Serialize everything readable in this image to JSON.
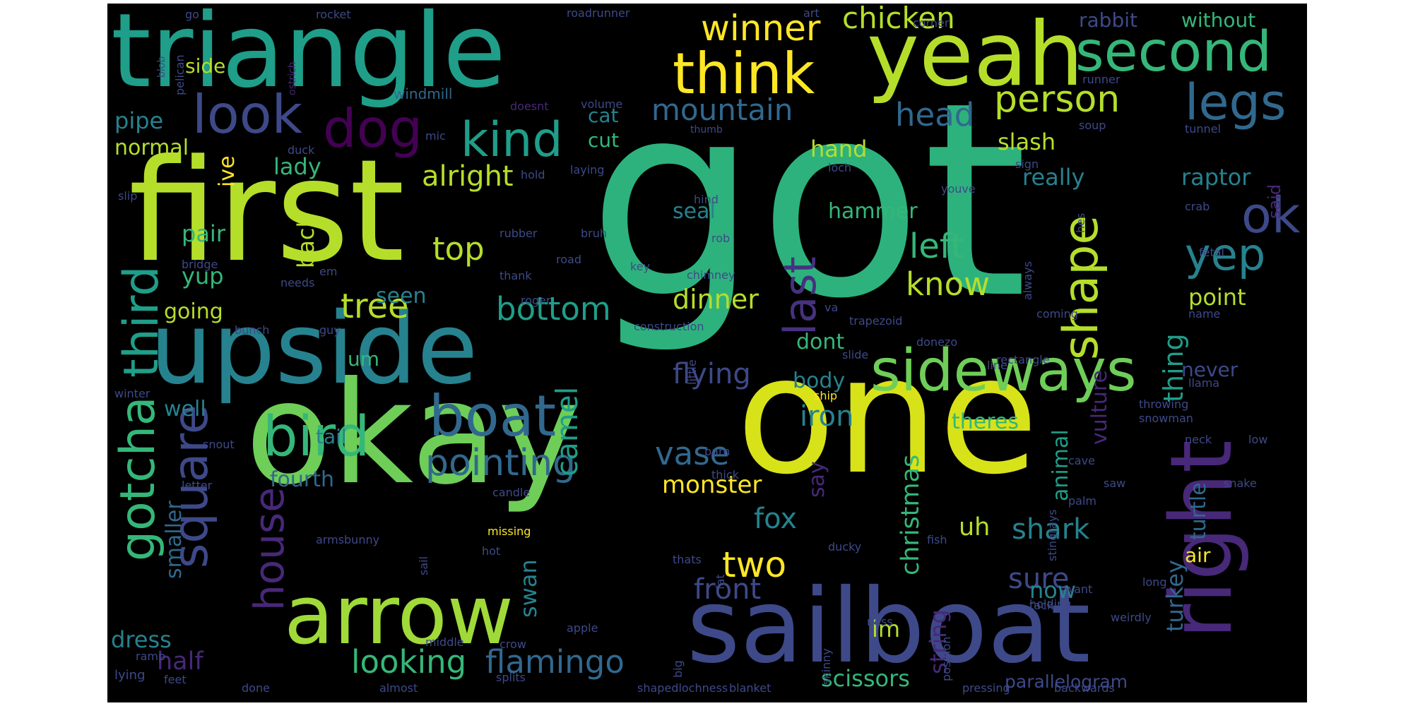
{
  "colors": {
    "background": "#000000",
    "palette": [
      "#fde725",
      "#b5de2b",
      "#6ece58",
      "#35b779",
      "#1f9e89",
      "#26828e",
      "#31688e",
      "#3e4989",
      "#482878",
      "#440154"
    ]
  },
  "words": [
    {
      "text": "got",
      "color": "#2db27d"
    },
    {
      "text": "one",
      "color": "#d8e219"
    },
    {
      "text": "first",
      "color": "#b5de2b"
    },
    {
      "text": "okay",
      "color": "#6ece58"
    },
    {
      "text": "triangle",
      "color": "#1f9e89"
    },
    {
      "text": "upside",
      "color": "#26828e"
    },
    {
      "text": "yeah",
      "color": "#b5de2b"
    },
    {
      "text": "sailboat",
      "color": "#3e4989"
    },
    {
      "text": "arrow",
      "color": "#a0da39"
    },
    {
      "text": "right",
      "color": "#482878"
    },
    {
      "text": "sideways",
      "color": "#6ece58"
    },
    {
      "text": "second",
      "color": "#35b779"
    },
    {
      "text": "think",
      "color": "#fde725"
    },
    {
      "text": "look",
      "color": "#3e4989"
    },
    {
      "text": "dog",
      "color": "#440154"
    },
    {
      "text": "boat",
      "color": "#31688e"
    },
    {
      "text": "bird",
      "color": "#35b779"
    },
    {
      "text": "kind",
      "color": "#1f9e89"
    },
    {
      "text": "shape",
      "color": "#b5de2b"
    },
    {
      "text": "third",
      "color": "#1f9e89"
    },
    {
      "text": "gotcha",
      "color": "#35b779"
    },
    {
      "text": "square",
      "color": "#3e4989"
    },
    {
      "text": "legs",
      "color": "#31688e"
    },
    {
      "text": "ok",
      "color": "#3e4989"
    },
    {
      "text": "last",
      "color": "#46327e"
    },
    {
      "text": "yep",
      "color": "#26828e"
    },
    {
      "text": "pointing",
      "color": "#31688e"
    },
    {
      "text": "house",
      "color": "#482878"
    },
    {
      "text": "person",
      "color": "#b5de2b"
    },
    {
      "text": "winner",
      "color": "#fde725"
    },
    {
      "text": "chicken",
      "color": "#b5de2b"
    },
    {
      "text": "mountain",
      "color": "#31688e"
    },
    {
      "text": "head",
      "color": "#31688e"
    },
    {
      "text": "left",
      "color": "#35b779"
    },
    {
      "text": "know",
      "color": "#b5de2b"
    },
    {
      "text": "bottom",
      "color": "#1f9e89"
    },
    {
      "text": "tree",
      "color": "#b5de2b"
    },
    {
      "text": "top",
      "color": "#b5de2b"
    },
    {
      "text": "flamingo",
      "color": "#31688e"
    },
    {
      "text": "looking",
      "color": "#35b779"
    },
    {
      "text": "alright",
      "color": "#b5de2b"
    },
    {
      "text": "vase",
      "color": "#31688e"
    },
    {
      "text": "flying",
      "color": "#3e4989"
    },
    {
      "text": "two",
      "color": "#fde725"
    },
    {
      "text": "front",
      "color": "#3e4989"
    },
    {
      "text": "fox",
      "color": "#26828e"
    },
    {
      "text": "monster",
      "color": "#fde725"
    },
    {
      "text": "camel",
      "color": "#1f9e89"
    },
    {
      "text": "swan",
      "color": "#26828e"
    },
    {
      "text": "shark",
      "color": "#26828e"
    },
    {
      "text": "sure",
      "color": "#3e4989"
    },
    {
      "text": "iron",
      "color": "#26828e"
    },
    {
      "text": "christmas",
      "color": "#35b779"
    },
    {
      "text": "uh",
      "color": "#b5de2b"
    },
    {
      "text": "dinner",
      "color": "#b5de2b"
    },
    {
      "text": "slash",
      "color": "#b5de2b"
    },
    {
      "text": "really",
      "color": "#26828e"
    },
    {
      "text": "raptor",
      "color": "#26828e"
    },
    {
      "text": "point",
      "color": "#b5de2b"
    },
    {
      "text": "thing",
      "color": "#1f9e89"
    },
    {
      "text": "vulture",
      "color": "#482878"
    },
    {
      "text": "turkey",
      "color": "#31688e"
    },
    {
      "text": "turtle",
      "color": "#31688e"
    },
    {
      "text": "string",
      "color": "#482878"
    },
    {
      "text": "im",
      "color": "#b5de2b"
    },
    {
      "text": "scissors",
      "color": "#35b779"
    },
    {
      "text": "parallelogram",
      "color": "#3e4989"
    },
    {
      "text": "now",
      "color": "#26828e"
    },
    {
      "text": "half",
      "color": "#482878"
    },
    {
      "text": "dress",
      "color": "#26828e"
    },
    {
      "text": "back",
      "color": "#b5de2b"
    },
    {
      "text": "going",
      "color": "#b5de2b"
    },
    {
      "text": "seen",
      "color": "#26828e"
    },
    {
      "text": "pair",
      "color": "#35b779"
    },
    {
      "text": "yup",
      "color": "#35b779"
    },
    {
      "text": "lady",
      "color": "#35b779"
    },
    {
      "text": "pipe",
      "color": "#26828e"
    },
    {
      "text": "normal",
      "color": "#b5de2b"
    },
    {
      "text": "side",
      "color": "#b5de2b"
    },
    {
      "text": "cut",
      "color": "#35b779"
    },
    {
      "text": "cat",
      "color": "#26828e"
    },
    {
      "text": "hand",
      "color": "#b5de2b"
    },
    {
      "text": "hammer",
      "color": "#35b779"
    },
    {
      "text": "seal",
      "color": "#26828e"
    },
    {
      "text": "dont",
      "color": "#35b779"
    },
    {
      "text": "body",
      "color": "#26828e"
    },
    {
      "text": "say",
      "color": "#482878"
    },
    {
      "text": "theres",
      "color": "#35b779"
    },
    {
      "text": "animal",
      "color": "#1f9e89"
    },
    {
      "text": "never",
      "color": "#3e4989"
    },
    {
      "text": "air",
      "color": "#fde725"
    },
    {
      "text": "well",
      "color": "#26828e"
    },
    {
      "text": "tail",
      "color": "#26828e"
    },
    {
      "text": "fourth",
      "color": "#31688e"
    },
    {
      "text": "smaller",
      "color": "#31688e"
    },
    {
      "text": "um",
      "color": "#35b779"
    },
    {
      "text": "ive",
      "color": "#fde725"
    },
    {
      "text": "without",
      "color": "#35b779"
    },
    {
      "text": "rabbit",
      "color": "#3e4989"
    },
    {
      "text": "said",
      "color": "#482878"
    },
    {
      "text": "windmill",
      "color": "#31688e"
    },
    {
      "text": "roadrunner",
      "color": "#3e4989"
    },
    {
      "text": "art",
      "color": "#3e4989"
    },
    {
      "text": "corner",
      "color": "#3e4989"
    },
    {
      "text": "rocket",
      "color": "#3e4989"
    },
    {
      "text": "go",
      "color": "#3e4989"
    },
    {
      "text": "blob",
      "color": "#3e4989"
    },
    {
      "text": "pelican",
      "color": "#3e4989"
    },
    {
      "text": "ostrich",
      "color": "#482878"
    },
    {
      "text": "mic",
      "color": "#3e4989"
    },
    {
      "text": "doesnt",
      "color": "#482878"
    },
    {
      "text": "volume",
      "color": "#3e4989"
    },
    {
      "text": "runner",
      "color": "#3e4989"
    },
    {
      "text": "soup",
      "color": "#3e4989"
    },
    {
      "text": "tunnel",
      "color": "#3e4989"
    },
    {
      "text": "thumb",
      "color": "#3e4989"
    },
    {
      "text": "duck",
      "color": "#3e4989"
    },
    {
      "text": "hold",
      "color": "#3e4989"
    },
    {
      "text": "laying",
      "color": "#3e4989"
    },
    {
      "text": "loch",
      "color": "#3e4989"
    },
    {
      "text": "sign",
      "color": "#3e4989"
    },
    {
      "text": "slip",
      "color": "#3e4989"
    },
    {
      "text": "hind",
      "color": "#3e4989"
    },
    {
      "text": "youve",
      "color": "#3e4989"
    },
    {
      "text": "crab",
      "color": "#3e4989"
    },
    {
      "text": "rubber",
      "color": "#3e4989"
    },
    {
      "text": "bruh",
      "color": "#3e4989"
    },
    {
      "text": "rob",
      "color": "#3e4989"
    },
    {
      "text": "hes",
      "color": "#3e4989"
    },
    {
      "text": "fetal",
      "color": "#3e4989"
    },
    {
      "text": "bridge",
      "color": "#3e4989"
    },
    {
      "text": "em",
      "color": "#3e4989"
    },
    {
      "text": "thank",
      "color": "#3e4989"
    },
    {
      "text": "road",
      "color": "#3e4989"
    },
    {
      "text": "key",
      "color": "#3e4989"
    },
    {
      "text": "chimney",
      "color": "#3e4989"
    },
    {
      "text": "needs",
      "color": "#3e4989"
    },
    {
      "text": "roger",
      "color": "#3e4989"
    },
    {
      "text": "va",
      "color": "#3e4989"
    },
    {
      "text": "always",
      "color": "#3e4989"
    },
    {
      "text": "coming",
      "color": "#3e4989"
    },
    {
      "text": "name",
      "color": "#3e4989"
    },
    {
      "text": "bunch",
      "color": "#3e4989"
    },
    {
      "text": "guy",
      "color": "#3e4989"
    },
    {
      "text": "construction",
      "color": "#3e4989"
    },
    {
      "text": "trapezoid",
      "color": "#3e4989"
    },
    {
      "text": "donezo",
      "color": "#3e4989"
    },
    {
      "text": "slide",
      "color": "#3e4989"
    },
    {
      "text": "rectangle",
      "color": "#3e4989"
    },
    {
      "text": "line",
      "color": "#3e4989"
    },
    {
      "text": "little",
      "color": "#3e4989"
    },
    {
      "text": "winter",
      "color": "#3e4989"
    },
    {
      "text": "ship",
      "color": "#3e4989"
    },
    {
      "text": "llama",
      "color": "#fde725"
    },
    {
      "text": "throwing",
      "color": "#3e4989"
    },
    {
      "text": "snowman",
      "color": "#3e4989"
    },
    {
      "text": "snout",
      "color": "#3e4989"
    },
    {
      "text": "neck",
      "color": "#3e4989"
    },
    {
      "text": "low",
      "color": "#3e4989"
    },
    {
      "text": "barn",
      "color": "#3e4989"
    },
    {
      "text": "letter",
      "color": "#3e4989"
    },
    {
      "text": "cave",
      "color": "#3e4989"
    },
    {
      "text": "saw",
      "color": "#3e4989"
    },
    {
      "text": "snake",
      "color": "#3e4989"
    },
    {
      "text": "thick",
      "color": "#3e4989"
    },
    {
      "text": "palm",
      "color": "#3e4989"
    },
    {
      "text": "candle",
      "color": "#3e4989"
    },
    {
      "text": "armsbunny",
      "color": "#3e4989"
    },
    {
      "text": "fish",
      "color": "#3e4989"
    },
    {
      "text": "sail",
      "color": "#3e4989"
    },
    {
      "text": "missing",
      "color": "#3e4989"
    },
    {
      "text": "ducky",
      "color": "#fde725"
    },
    {
      "text": "stingrays",
      "color": "#3e4989"
    },
    {
      "text": "hot",
      "color": "#3e4989"
    },
    {
      "text": "thats",
      "color": "#3e4989"
    },
    {
      "text": "fat",
      "color": "#3e4989"
    },
    {
      "text": "want",
      "color": "#3e4989"
    },
    {
      "text": "long",
      "color": "#3e4989"
    },
    {
      "text": "holding",
      "color": "#3e4989"
    },
    {
      "text": "tack",
      "color": "#3e4989"
    },
    {
      "text": "weirdly",
      "color": "#3e4989"
    },
    {
      "text": "ness",
      "color": "#3e4989"
    },
    {
      "text": "apple",
      "color": "#3e4989"
    },
    {
      "text": "ramp",
      "color": "#3e4989"
    },
    {
      "text": "middle",
      "color": "#3e4989"
    },
    {
      "text": "crow",
      "color": "#3e4989"
    },
    {
      "text": "skinny",
      "color": "#3e4989"
    },
    {
      "text": "position",
      "color": "#3e4989"
    },
    {
      "text": "lying",
      "color": "#3e4989"
    },
    {
      "text": "big",
      "color": "#3e4989"
    },
    {
      "text": "splits",
      "color": "#3e4989"
    },
    {
      "text": "feet",
      "color": "#3e4989"
    },
    {
      "text": "done",
      "color": "#3e4989"
    },
    {
      "text": "almost",
      "color": "#3e4989"
    },
    {
      "text": "shapedlochness",
      "color": "#3e4989"
    },
    {
      "text": "blanket",
      "color": "#3e4989"
    },
    {
      "text": "pressing",
      "color": "#3e4989"
    },
    {
      "text": "backwards",
      "color": "#3e4989"
    },
    {
      "text": "strange",
      "color": "#3e4989"
    }
  ]
}
